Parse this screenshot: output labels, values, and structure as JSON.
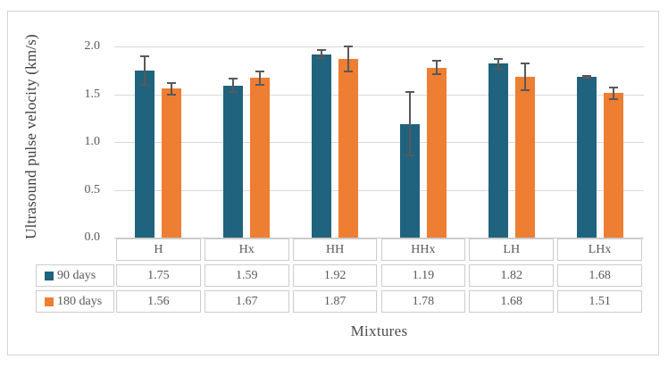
{
  "figure": {
    "xlabel": "Mixtures",
    "ylabel": "Ultrasound pulse velocity (km/s)"
  },
  "palette": {
    "series_90_days": "#20637f",
    "series_180_days": "#ee7e32",
    "gridline": "#d9d9d9",
    "error_bar": "#595959",
    "text_gray": "#595959",
    "frame_border": "#d4d4d4"
  },
  "chart_data": {
    "type": "bar",
    "title": "",
    "categories": [
      "H",
      "Hx",
      "HH",
      "HHx",
      "LH",
      "LHx"
    ],
    "series": [
      {
        "name": "90 days",
        "color": "#20637f",
        "values": [
          1.75,
          1.59,
          1.92,
          1.19,
          1.82,
          1.68
        ],
        "errors": [
          0.16,
          0.08,
          0.05,
          0.34,
          0.06,
          0.02
        ]
      },
      {
        "name": "180 days",
        "color": "#ee7e32",
        "values": [
          1.56,
          1.67,
          1.87,
          1.78,
          1.68,
          1.51
        ],
        "errors": [
          0.07,
          0.08,
          0.14,
          0.08,
          0.15,
          0.07
        ]
      }
    ],
    "xlabel": "Mixtures",
    "ylabel": "Ultrasound pulse velocity (km/s)",
    "ylim": [
      0.0,
      2.2
    ],
    "yticks": [
      0.0,
      0.5,
      1.0,
      1.5,
      2.0
    ],
    "ytick_labels": [
      "0.0",
      "0.5",
      "1.0",
      "1.5",
      "2.0"
    ],
    "grid": true,
    "error_bars": true,
    "legend_position": "data-table-left",
    "data_table": {
      "row_labels": [
        "90 days",
        "180 days"
      ],
      "rows": [
        [
          "1.75",
          "1.59",
          "1.92",
          "1.19",
          "1.82",
          "1.68"
        ],
        [
          "1.56",
          "1.67",
          "1.87",
          "1.78",
          "1.68",
          "1.51"
        ]
      ]
    }
  }
}
